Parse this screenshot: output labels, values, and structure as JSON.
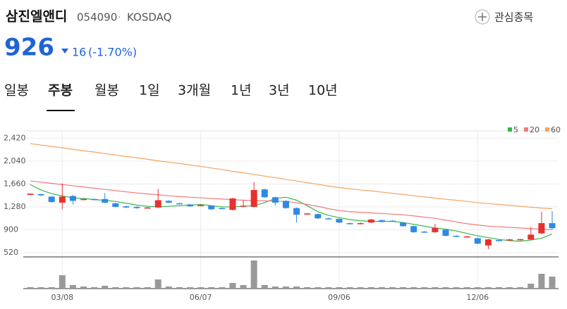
{
  "header": {
    "company": "삼진엘앤디",
    "code": "054090",
    "market": "KOSDAQ",
    "watch": "관심종목"
  },
  "price": {
    "current": "926",
    "change": "16",
    "change_pct": "(-1.70%)"
  },
  "tabs": [
    "일봉",
    "주봉",
    "월봉",
    "1일",
    "3개월",
    "1년",
    "3년",
    "10년"
  ],
  "chart_data": {
    "type": "candlestick",
    "categories": [
      null,
      null,
      null,
      "03/08",
      null,
      null,
      null,
      null,
      null,
      null,
      null,
      null,
      null,
      null,
      null,
      null,
      "06/07",
      null,
      null,
      null,
      null,
      null,
      null,
      null,
      null,
      null,
      null,
      null,
      null,
      "09/06",
      null,
      null,
      null,
      null,
      null,
      null,
      null,
      null,
      null,
      null,
      null,
      null,
      "12/06",
      null,
      null,
      null,
      null,
      null,
      null,
      null
    ],
    "open": [
      1480,
      1490,
      1450,
      1350,
      1460,
      1400,
      1410,
      1410,
      1340,
      1290,
      1280,
      1260,
      1270,
      1380,
      1340,
      1320,
      1300,
      1300,
      1260,
      1230,
      1290,
      1280,
      1570,
      1440,
      1380,
      1260,
      1160,
      1160,
      1090,
      1080,
      1010,
      1000,
      1020,
      1060,
      1050,
      1020,
      960,
      870,
      860,
      900,
      800,
      780,
      760,
      640,
      730,
      730,
      735,
      740,
      840,
      1010
    ],
    "high": [
      1500,
      1500,
      1460,
      1670,
      1480,
      1420,
      1420,
      1510,
      1350,
      1300,
      1290,
      1280,
      1580,
      1390,
      1350,
      1330,
      1320,
      1310,
      1270,
      1430,
      1400,
      1690,
      1580,
      1450,
      1390,
      1270,
      1180,
      1170,
      1100,
      1090,
      1020,
      1020,
      1080,
      1070,
      1060,
      1030,
      970,
      880,
      1000,
      910,
      810,
      800,
      770,
      750,
      740,
      750,
      750,
      950,
      1200,
      1210
    ],
    "low": [
      1470,
      1460,
      1350,
      1240,
      1320,
      1390,
      1390,
      1340,
      1270,
      1260,
      1250,
      1250,
      1260,
      1340,
      1320,
      1280,
      1290,
      1230,
      1240,
      1220,
      1270,
      1270,
      1430,
      1300,
      1250,
      1020,
      1150,
      1080,
      1070,
      1010,
      990,
      990,
      1010,
      1020,
      1030,
      950,
      850,
      850,
      850,
      790,
      780,
      770,
      660,
      580,
      710,
      720,
      720,
      730,
      830,
      900
    ],
    "close": [
      1500,
      1470,
      1360,
      1450,
      1380,
      1410,
      1400,
      1350,
      1280,
      1270,
      1260,
      1270,
      1390,
      1350,
      1330,
      1290,
      1310,
      1240,
      1250,
      1420,
      1300,
      1560,
      1440,
      1350,
      1260,
      1150,
      1170,
      1090,
      1080,
      1020,
      1000,
      1010,
      1070,
      1030,
      1040,
      960,
      860,
      860,
      930,
      800,
      790,
      790,
      670,
      740,
      720,
      740,
      745,
      820,
      1010,
      926
    ],
    "up_color": "#e8302f",
    "down_color": "#2d8ae4",
    "series": [
      {
        "name": "5",
        "color": "#38b548",
        "values": [
          1650,
          1560,
          1500,
          1460,
          1430,
          1420,
          1400,
          1390,
          1370,
          1340,
          1310,
          1290,
          1280,
          1290,
          1300,
          1310,
          1320,
          1300,
          1280,
          1280,
          1290,
          1300,
          1350,
          1420,
          1440,
          1390,
          1300,
          1200,
          1140,
          1100,
          1070,
          1050,
          1040,
          1040,
          1040,
          1020,
          990,
          960,
          930,
          910,
          880,
          840,
          800,
          770,
          740,
          720,
          710,
          730,
          760,
          830
        ]
      },
      {
        "name": "20",
        "color": "#f07a7c",
        "values": [
          1710,
          1690,
          1670,
          1650,
          1630,
          1610,
          1590,
          1570,
          1550,
          1530,
          1510,
          1495,
          1480,
          1465,
          1450,
          1440,
          1430,
          1420,
          1410,
          1400,
          1390,
          1385,
          1380,
          1375,
          1370,
          1350,
          1320,
          1290,
          1250,
          1220,
          1200,
          1190,
          1180,
          1170,
          1160,
          1150,
          1130,
          1110,
          1090,
          1060,
          1030,
          1000,
          980,
          960,
          950,
          940,
          930,
          920,
          910,
          900
        ]
      },
      {
        "name": "60",
        "color": "#f5a462",
        "values": [
          2330,
          2305,
          2280,
          2260,
          2235,
          2210,
          2190,
          2165,
          2140,
          2115,
          2095,
          2070,
          2045,
          2020,
          2000,
          1975,
          1950,
          1925,
          1900,
          1870,
          1845,
          1820,
          1790,
          1765,
          1735,
          1710,
          1680,
          1655,
          1625,
          1600,
          1580,
          1560,
          1545,
          1525,
          1505,
          1485,
          1465,
          1445,
          1425,
          1405,
          1390,
          1370,
          1350,
          1335,
          1320,
          1305,
          1290,
          1275,
          1260,
          1250
        ]
      }
    ],
    "volume": [
      2,
      2,
      2,
      19,
      5,
      3,
      2,
      4,
      2,
      2,
      2,
      2,
      13,
      3,
      2,
      2,
      2,
      2,
      2,
      8,
      5,
      40,
      5,
      3,
      3,
      3,
      2,
      2,
      2,
      2,
      2,
      2,
      2,
      2,
      2,
      2,
      2,
      2,
      2,
      2,
      2,
      2,
      2,
      2,
      2,
      2,
      2,
      7,
      21,
      17
    ],
    "volume_color": "#999999",
    "ylim": [
      450,
      2540
    ],
    "yticks": [
      {
        "value": 2420,
        "label": "2,420"
      },
      {
        "value": 2040,
        "label": "2,040"
      },
      {
        "value": 1660,
        "label": "1,660"
      },
      {
        "value": 1280,
        "label": "1,280"
      },
      900,
      520
    ],
    "grid": true
  }
}
